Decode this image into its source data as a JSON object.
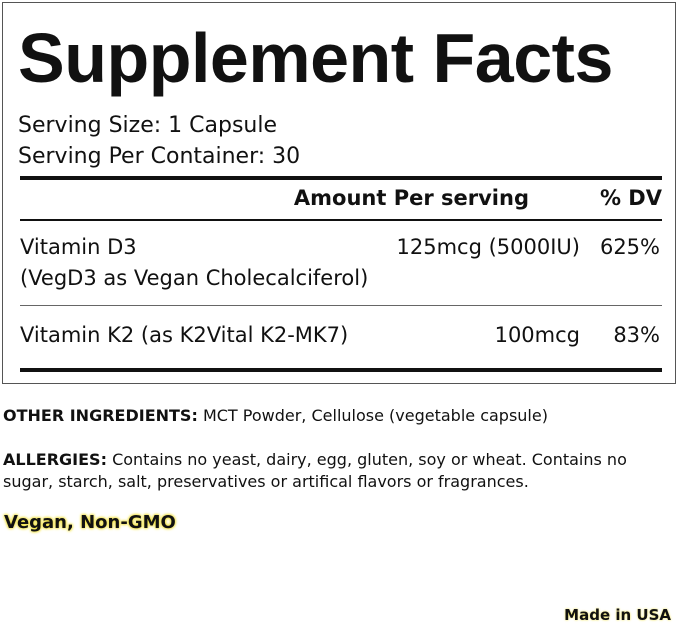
{
  "title": "Supplement Facts",
  "serving_size": "Serving Size: 1 Capsule",
  "servings_per_container": "Serving Per Container: 30",
  "table": {
    "header": {
      "amount": "Amount Per serving",
      "dv": "% DV"
    },
    "rows": [
      {
        "name": "Vitamin D3",
        "detail": "(VegD3 as Vegan Cholecalciferol)",
        "amount": "125mcg (5000IU)",
        "dv": "625%"
      },
      {
        "name": "Vitamin K2 (as K2Vital K2-MK7)",
        "amount": "100mcg",
        "dv": "83%"
      }
    ]
  },
  "other_ingredients": {
    "label": "OTHER INGREDIENTS:",
    "text": "MCT Powder, Cellulose (vegetable capsule)"
  },
  "allergies": {
    "label": "ALLERGIES:",
    "text": "Contains no yeast, dairy, egg, gluten, soy or wheat. Contains no sugar, starch, salt, preservatives or artifical flavors or fragrances."
  },
  "claims": "Vegan, Non-GMO",
  "origin": "Made in USA"
}
